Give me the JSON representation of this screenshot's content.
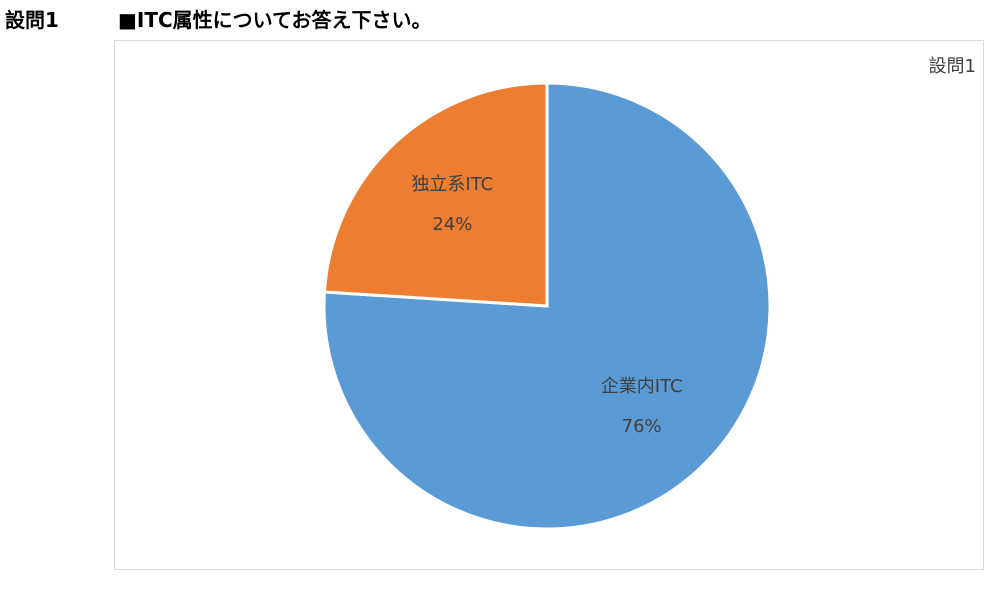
{
  "heading": "設問1",
  "question": "■ITC属性についてお答え下さい。",
  "chart_data": {
    "type": "pie",
    "title": "設問1",
    "categories": [
      "企業内ITC",
      "独立系ITC"
    ],
    "values": [
      76,
      24
    ],
    "value_labels": [
      "76%",
      "24%"
    ],
    "colors": [
      "#5b9bd5",
      "#ed7d31"
    ]
  }
}
